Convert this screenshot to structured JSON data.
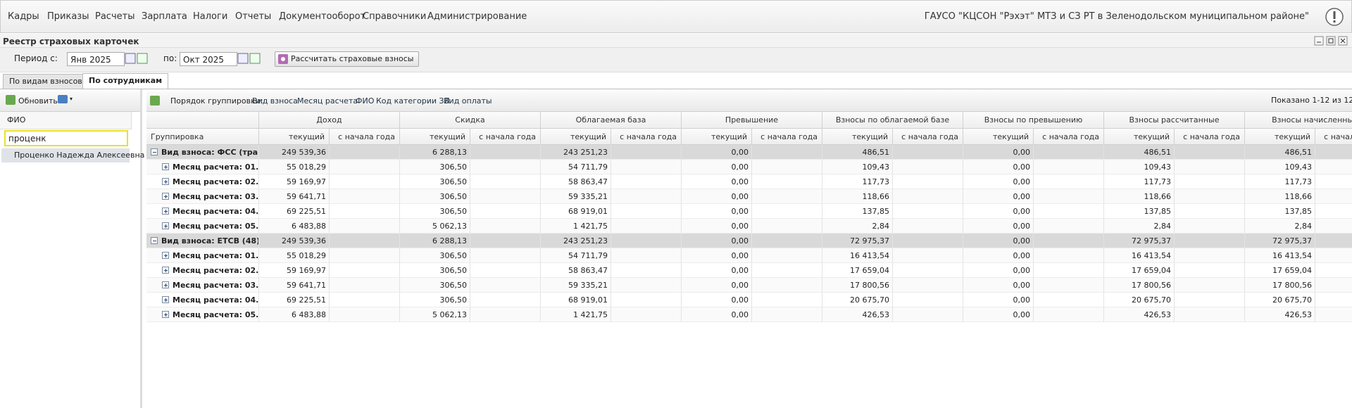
{
  "menu": [
    "Кадры",
    "Приказы",
    "Расчеты",
    "Зарплата",
    "Налоги",
    "Отчеты",
    "Документооборот",
    "Справочники",
    "Администрирование"
  ],
  "org": "ГАУСО \"КЦСОН \"Рэхэт\" МТЗ и СЗ РТ в Зеленодольском муниципальном районе\"",
  "window_title": "Реестр страховых карточек",
  "filters": {
    "period_from_label": "Период с:",
    "period_from": "Янв 2025",
    "period_to_label": "по:",
    "period_to": "Окт 2025",
    "calc_button": "Рассчитать страховые взносы"
  },
  "tabs": [
    "По видам взносов",
    "По сотрудникам"
  ],
  "left_panel": {
    "refresh": "Обновить",
    "fio_label": "ФИО",
    "search": "проценк",
    "employees": [
      "Проценко Надежда Алексеевна"
    ]
  },
  "grid": {
    "grouping_label": "Порядок группировки:",
    "grouping": [
      "Вид взноса",
      "Месяц расчета",
      "ФИО",
      "Код категории ЗЛ",
      "Вид оплаты"
    ],
    "paging": "Показано 1-12 из 12",
    "group_header": "Группировка",
    "columns": [
      "Доход",
      "Скидка",
      "Облагаемая база",
      "Превышение",
      "Взносы по облагаемой базе",
      "Взносы по превышению",
      "Взносы рассчитанные",
      "Взносы начисленные"
    ],
    "sub_current": "текущий",
    "sub_ytd": "с начала года",
    "rows": [
      {
        "label": "Вид взноса: ФСС (тра...",
        "group": true,
        "values": [
          "249 539,36",
          "6 288,13",
          "243 251,23",
          "0,00",
          "486,51",
          "0,00",
          "486,51",
          "486,51"
        ]
      },
      {
        "label": "Месяц расчета: 01...",
        "group": false,
        "values": [
          "55 018,29",
          "306,50",
          "54 711,79",
          "0,00",
          "109,43",
          "0,00",
          "109,43",
          "109,43"
        ]
      },
      {
        "label": "Месяц расчета: 02...",
        "group": false,
        "values": [
          "59 169,97",
          "306,50",
          "58 863,47",
          "0,00",
          "117,73",
          "0,00",
          "117,73",
          "117,73"
        ]
      },
      {
        "label": "Месяц расчета: 03...",
        "group": false,
        "values": [
          "59 641,71",
          "306,50",
          "59 335,21",
          "0,00",
          "118,66",
          "0,00",
          "118,66",
          "118,66"
        ]
      },
      {
        "label": "Месяц расчета: 04...",
        "group": false,
        "values": [
          "69 225,51",
          "306,50",
          "68 919,01",
          "0,00",
          "137,85",
          "0,00",
          "137,85",
          "137,85"
        ]
      },
      {
        "label": "Месяц расчета: 05...",
        "group": false,
        "values": [
          "6 483,88",
          "5 062,13",
          "1 421,75",
          "0,00",
          "2,84",
          "0,00",
          "2,84",
          "2,84"
        ]
      },
      {
        "label": "Вид взноса: ЕТСВ (48)",
        "group": true,
        "values": [
          "249 539,36",
          "6 288,13",
          "243 251,23",
          "0,00",
          "72 975,37",
          "0,00",
          "72 975,37",
          "72 975,37"
        ]
      },
      {
        "label": "Месяц расчета: 01...",
        "group": false,
        "values": [
          "55 018,29",
          "306,50",
          "54 711,79",
          "0,00",
          "16 413,54",
          "0,00",
          "16 413,54",
          "16 413,54"
        ]
      },
      {
        "label": "Месяц расчета: 02...",
        "group": false,
        "values": [
          "59 169,97",
          "306,50",
          "58 863,47",
          "0,00",
          "17 659,04",
          "0,00",
          "17 659,04",
          "17 659,04"
        ]
      },
      {
        "label": "Месяц расчета: 03...",
        "group": false,
        "values": [
          "59 641,71",
          "306,50",
          "59 335,21",
          "0,00",
          "17 800,56",
          "0,00",
          "17 800,56",
          "17 800,56"
        ]
      },
      {
        "label": "Месяц расчета: 04...",
        "group": false,
        "values": [
          "69 225,51",
          "306,50",
          "68 919,01",
          "0,00",
          "20 675,70",
          "0,00",
          "20 675,70",
          "20 675,70"
        ]
      },
      {
        "label": "Месяц расчета: 05...",
        "group": false,
        "values": [
          "6 483,88",
          "5 062,13",
          "1 421,75",
          "0,00",
          "426,53",
          "0,00",
          "426,53",
          "426,53"
        ]
      }
    ]
  }
}
